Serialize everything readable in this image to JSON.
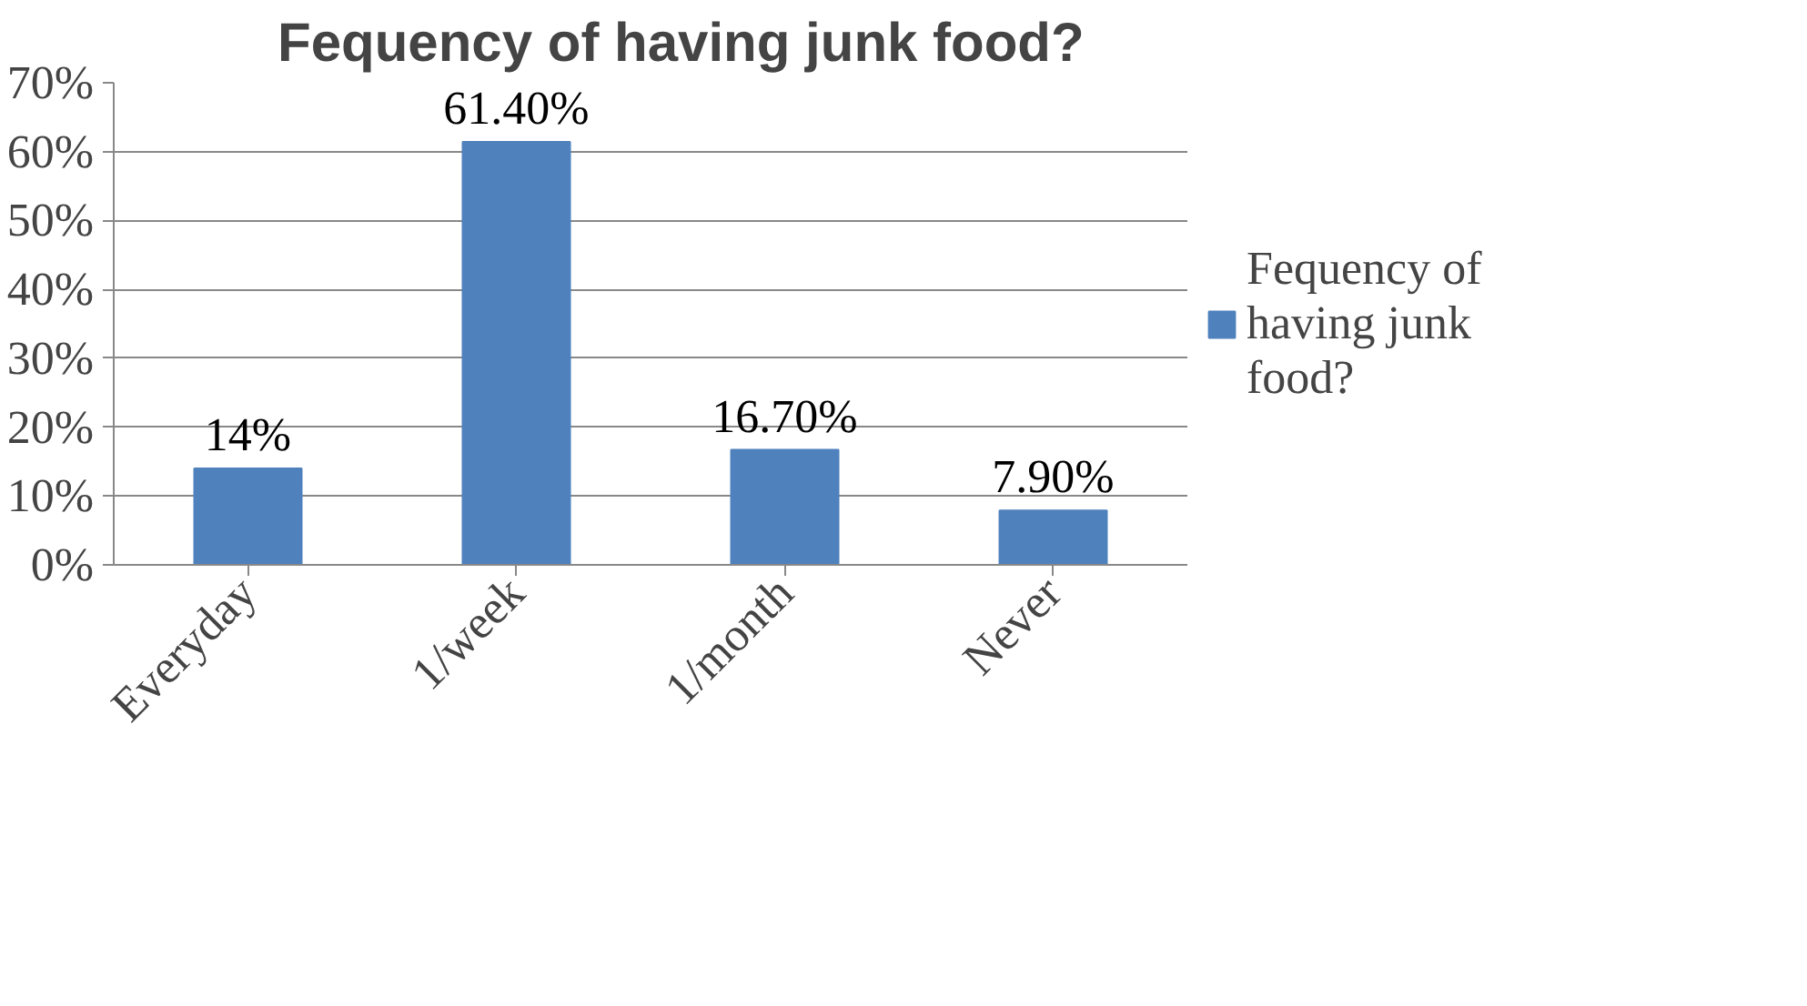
{
  "chart_data": {
    "type": "bar",
    "title": "Fequency of having junk food?",
    "categories": [
      "Everyday",
      "1/week",
      "1/month",
      "Never"
    ],
    "series": [
      {
        "name": "Fequency of having junk food?",
        "color": "#4f81bd",
        "values": [
          14,
          61.4,
          16.7,
          7.9
        ],
        "value_labels": [
          "14%",
          "61.40%",
          "16.70%",
          "7.90%"
        ]
      }
    ],
    "ylim": [
      0,
      70
    ],
    "yticks": [
      {
        "value": 0,
        "label": "0%"
      },
      {
        "value": 10,
        "label": "10%"
      },
      {
        "value": 20,
        "label": "20%"
      },
      {
        "value": 30,
        "label": "30%"
      },
      {
        "value": 40,
        "label": "40%"
      },
      {
        "value": 50,
        "label": "50%"
      },
      {
        "value": 60,
        "label": "60%"
      },
      {
        "value": 70,
        "label": "70%"
      }
    ],
    "grid": "y",
    "legend": "right"
  }
}
